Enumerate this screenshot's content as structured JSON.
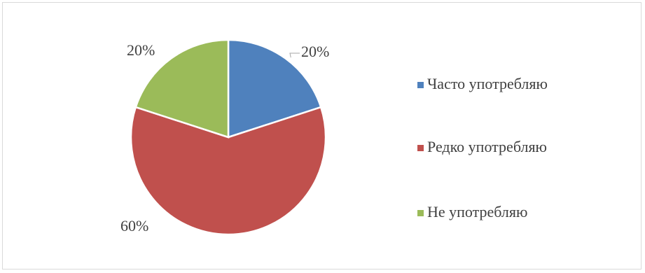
{
  "chart_data": {
    "type": "pie",
    "title": "",
    "categories": [
      "Часто употребляю",
      "Редко употребляю",
      "Не употребляю"
    ],
    "values": [
      20,
      60,
      20
    ],
    "data_labels": [
      "20%",
      "60%",
      "20%"
    ],
    "colors": [
      "#4f81bd",
      "#c0504d",
      "#9bbb59"
    ],
    "start_angle_deg": 0,
    "direction": "clockwise",
    "legend_position": "right"
  }
}
